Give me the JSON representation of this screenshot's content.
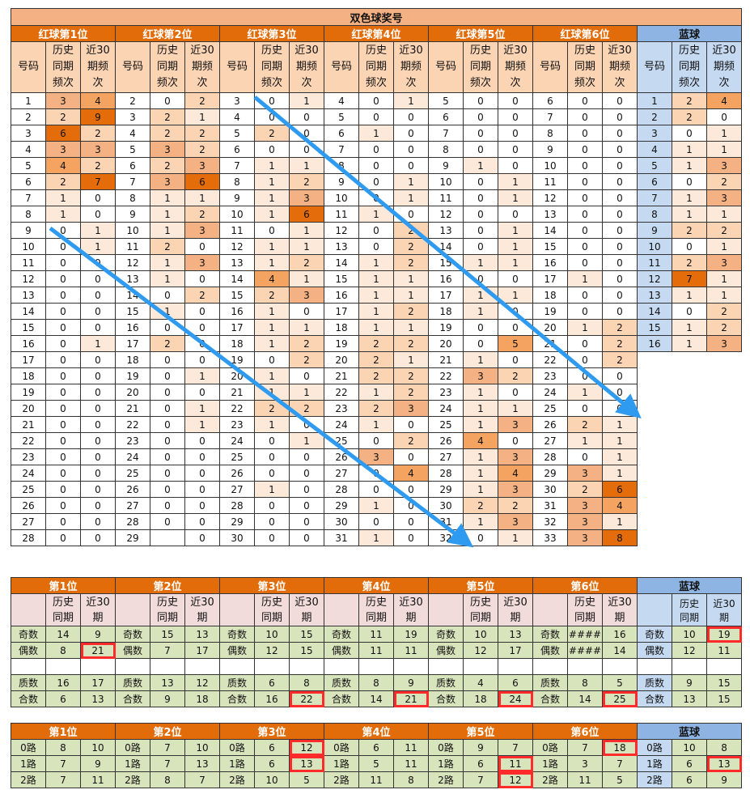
{
  "main_table": {
    "title": "双色球奖号",
    "groups": [
      "红球第1位",
      "红球第2位",
      "红球第3位",
      "红球第4位",
      "红球第5位",
      "红球第6位",
      "蓝球"
    ],
    "sub_headers": [
      "号码",
      "历史同期频次",
      "近30期频次"
    ],
    "red_rows": [
      [
        [
          1,
          3,
          4
        ],
        [
          2,
          0,
          2
        ],
        [
          3,
          0,
          1
        ],
        [
          4,
          0,
          1
        ],
        [
          5,
          0,
          0
        ],
        [
          6,
          0,
          0
        ]
      ],
      [
        [
          2,
          2,
          9
        ],
        [
          3,
          2,
          1
        ],
        [
          4,
          0,
          0
        ],
        [
          5,
          0,
          0
        ],
        [
          6,
          0,
          0
        ],
        [
          7,
          0,
          0
        ]
      ],
      [
        [
          3,
          6,
          2
        ],
        [
          4,
          2,
          2
        ],
        [
          5,
          2,
          0
        ],
        [
          6,
          1,
          0
        ],
        [
          7,
          0,
          0
        ],
        [
          8,
          0,
          0
        ]
      ],
      [
        [
          4,
          3,
          3
        ],
        [
          5,
          3,
          2
        ],
        [
          6,
          0,
          0
        ],
        [
          7,
          0,
          0
        ],
        [
          8,
          0,
          0
        ],
        [
          9,
          0,
          0
        ]
      ],
      [
        [
          5,
          4,
          2
        ],
        [
          6,
          2,
          3
        ],
        [
          7,
          1,
          1
        ],
        [
          8,
          0,
          0
        ],
        [
          9,
          1,
          0
        ],
        [
          10,
          0,
          0
        ]
      ],
      [
        [
          6,
          2,
          7
        ],
        [
          7,
          3,
          6
        ],
        [
          8,
          1,
          2
        ],
        [
          9,
          0,
          1
        ],
        [
          10,
          0,
          1
        ],
        [
          11,
          0,
          0
        ]
      ],
      [
        [
          7,
          1,
          0
        ],
        [
          8,
          1,
          1
        ],
        [
          9,
          1,
          3
        ],
        [
          10,
          0,
          1
        ],
        [
          11,
          0,
          1
        ],
        [
          12,
          0,
          0
        ]
      ],
      [
        [
          8,
          1,
          0
        ],
        [
          9,
          1,
          2
        ],
        [
          10,
          1,
          6
        ],
        [
          11,
          1,
          0
        ],
        [
          12,
          0,
          0
        ],
        [
          13,
          0,
          0
        ]
      ],
      [
        [
          9,
          0,
          1
        ],
        [
          10,
          1,
          3
        ],
        [
          11,
          0,
          1
        ],
        [
          12,
          0,
          2
        ],
        [
          13,
          0,
          1
        ],
        [
          14,
          0,
          0
        ]
      ],
      [
        [
          10,
          0,
          1
        ],
        [
          11,
          2,
          0
        ],
        [
          12,
          1,
          1
        ],
        [
          13,
          0,
          2
        ],
        [
          14,
          0,
          1
        ],
        [
          15,
          0,
          0
        ]
      ],
      [
        [
          11,
          0,
          0
        ],
        [
          12,
          1,
          3
        ],
        [
          13,
          1,
          2
        ],
        [
          14,
          1,
          2
        ],
        [
          15,
          1,
          1
        ],
        [
          16,
          0,
          0
        ]
      ],
      [
        [
          12,
          0,
          0
        ],
        [
          13,
          1,
          0
        ],
        [
          14,
          4,
          1
        ],
        [
          15,
          1,
          1
        ],
        [
          16,
          0,
          0
        ],
        [
          17,
          1,
          0
        ]
      ],
      [
        [
          13,
          0,
          0
        ],
        [
          14,
          0,
          2
        ],
        [
          15,
          2,
          3
        ],
        [
          16,
          1,
          1
        ],
        [
          17,
          1,
          1
        ],
        [
          18,
          0,
          0
        ]
      ],
      [
        [
          14,
          0,
          0
        ],
        [
          15,
          1,
          0
        ],
        [
          16,
          1,
          0
        ],
        [
          17,
          1,
          2
        ],
        [
          18,
          1,
          0
        ],
        [
          19,
          0,
          0
        ]
      ],
      [
        [
          15,
          0,
          0
        ],
        [
          16,
          0,
          0
        ],
        [
          17,
          1,
          1
        ],
        [
          18,
          1,
          1
        ],
        [
          19,
          0,
          0
        ],
        [
          20,
          1,
          2
        ]
      ],
      [
        [
          16,
          0,
          1
        ],
        [
          17,
          2,
          0
        ],
        [
          18,
          1,
          2
        ],
        [
          19,
          2,
          2
        ],
        [
          20,
          0,
          5
        ],
        [
          21,
          0,
          2
        ]
      ],
      [
        [
          17,
          0,
          0
        ],
        [
          18,
          0,
          0
        ],
        [
          19,
          0,
          2
        ],
        [
          20,
          2,
          1
        ],
        [
          21,
          1,
          0
        ],
        [
          22,
          0,
          2
        ]
      ],
      [
        [
          18,
          0,
          0
        ],
        [
          19,
          0,
          1
        ],
        [
          20,
          1,
          0
        ],
        [
          21,
          2,
          2
        ],
        [
          22,
          3,
          2
        ],
        [
          23,
          0,
          0
        ]
      ],
      [
        [
          19,
          0,
          0
        ],
        [
          20,
          0,
          0
        ],
        [
          21,
          1,
          1
        ],
        [
          22,
          1,
          2
        ],
        [
          23,
          1,
          0
        ],
        [
          24,
          1,
          0
        ]
      ],
      [
        [
          20,
          0,
          0
        ],
        [
          21,
          0,
          1
        ],
        [
          22,
          2,
          2
        ],
        [
          23,
          2,
          3
        ],
        [
          24,
          1,
          1
        ],
        [
          25,
          0,
          0
        ]
      ],
      [
        [
          21,
          0,
          0
        ],
        [
          22,
          0,
          1
        ],
        [
          23,
          1,
          0
        ],
        [
          24,
          1,
          0
        ],
        [
          25,
          1,
          3
        ],
        [
          26,
          2,
          1
        ]
      ],
      [
        [
          22,
          0,
          0
        ],
        [
          23,
          0,
          0
        ],
        [
          24,
          0,
          1
        ],
        [
          25,
          0,
          2
        ],
        [
          26,
          4,
          0
        ],
        [
          27,
          1,
          1
        ]
      ],
      [
        [
          23,
          0,
          0
        ],
        [
          24,
          0,
          0
        ],
        [
          25,
          0,
          0
        ],
        [
          26,
          3,
          0
        ],
        [
          27,
          1,
          3
        ],
        [
          28,
          0,
          1
        ]
      ],
      [
        [
          24,
          0,
          0
        ],
        [
          25,
          0,
          0
        ],
        [
          26,
          0,
          0
        ],
        [
          27,
          0,
          4
        ],
        [
          28,
          1,
          4
        ],
        [
          29,
          3,
          1
        ]
      ],
      [
        [
          25,
          0,
          0
        ],
        [
          26,
          0,
          0
        ],
        [
          27,
          1,
          0
        ],
        [
          28,
          0,
          0
        ],
        [
          29,
          1,
          3
        ],
        [
          30,
          2,
          6
        ]
      ],
      [
        [
          26,
          0,
          0
        ],
        [
          27,
          0,
          0
        ],
        [
          28,
          0,
          0
        ],
        [
          29,
          1,
          0
        ],
        [
          30,
          2,
          2
        ],
        [
          31,
          3,
          4
        ]
      ],
      [
        [
          27,
          0,
          0
        ],
        [
          28,
          0,
          0
        ],
        [
          29,
          0,
          0
        ],
        [
          30,
          0,
          0
        ],
        [
          31,
          1,
          3
        ],
        [
          32,
          3,
          1
        ]
      ],
      [
        [
          28,
          0,
          0
        ],
        [
          29,
          "",
          0
        ],
        [
          30,
          0,
          0
        ],
        [
          31,
          1,
          0
        ],
        [
          32,
          0,
          1
        ],
        [
          33,
          3,
          8
        ]
      ]
    ],
    "blue_rows": [
      [
        1,
        2,
        4
      ],
      [
        2,
        2,
        0
      ],
      [
        3,
        0,
        1
      ],
      [
        4,
        1,
        1
      ],
      [
        5,
        1,
        3
      ],
      [
        6,
        0,
        2
      ],
      [
        7,
        1,
        3
      ],
      [
        8,
        1,
        1
      ],
      [
        9,
        2,
        2
      ],
      [
        10,
        0,
        1
      ],
      [
        11,
        2,
        3
      ],
      [
        12,
        7,
        1
      ],
      [
        13,
        1,
        1
      ],
      [
        14,
        0,
        2
      ],
      [
        15,
        1,
        2
      ],
      [
        16,
        1,
        3
      ]
    ]
  },
  "parity_table": {
    "headers": [
      "第1位",
      "第2位",
      "第3位",
      "第4位",
      "第5位",
      "第6位",
      "蓝球"
    ],
    "sub_headers": [
      "历史同期",
      "近30期"
    ],
    "rows": [
      {
        "label": "奇数",
        "cols": [
          [
            14,
            9
          ],
          [
            15,
            13
          ],
          [
            10,
            15
          ],
          [
            11,
            19
          ],
          [
            10,
            13
          ],
          [
            "####",
            16
          ],
          [
            10,
            19
          ]
        ]
      },
      {
        "label": "偶数",
        "cols": [
          [
            8,
            21
          ],
          [
            7,
            17
          ],
          [
            12,
            15
          ],
          [
            11,
            11
          ],
          [
            12,
            17
          ],
          [
            "####",
            14
          ],
          [
            12,
            11
          ]
        ]
      },
      {
        "label": "",
        "cols": [
          [
            "",
            ""
          ],
          [
            "",
            ""
          ],
          [
            "",
            ""
          ],
          [
            "",
            ""
          ],
          [
            "",
            ""
          ],
          [
            "",
            ""
          ],
          [
            "",
            ""
          ]
        ]
      },
      {
        "label": "质数",
        "cols": [
          [
            16,
            17
          ],
          [
            13,
            12
          ],
          [
            6,
            8
          ],
          [
            8,
            9
          ],
          [
            4,
            6
          ],
          [
            8,
            5
          ],
          [
            9,
            15
          ]
        ]
      },
      {
        "label": "合数",
        "cols": [
          [
            6,
            13
          ],
          [
            9,
            18
          ],
          [
            16,
            22
          ],
          [
            14,
            21
          ],
          [
            18,
            24
          ],
          [
            14,
            25
          ],
          [
            13,
            15
          ]
        ]
      }
    ]
  },
  "route_table": {
    "headers": [
      "第1位",
      "第2位",
      "第3位",
      "第4位",
      "第5位",
      "第6位",
      "蓝球"
    ],
    "rows": [
      {
        "label": "0路",
        "cols": [
          [
            8,
            10
          ],
          [
            7,
            10
          ],
          [
            6,
            12
          ],
          [
            6,
            11
          ],
          [
            9,
            7
          ],
          [
            7,
            18
          ],
          [
            10,
            8
          ]
        ]
      },
      {
        "label": "1路",
        "cols": [
          [
            7,
            9
          ],
          [
            7,
            13
          ],
          [
            6,
            13
          ],
          [
            5,
            11
          ],
          [
            6,
            11
          ],
          [
            3,
            7
          ],
          [
            6,
            13
          ]
        ]
      },
      {
        "label": "2路",
        "cols": [
          [
            7,
            11
          ],
          [
            8,
            7
          ],
          [
            10,
            5
          ],
          [
            11,
            8
          ],
          [
            7,
            12
          ],
          [
            11,
            5
          ],
          [
            6,
            9
          ]
        ]
      }
    ]
  },
  "colors": {
    "orange_header": "#e36c0a",
    "blue_header": "#8eb4e3",
    "highlight_box": "#ff2a2a",
    "arrow": "#2e9bf0"
  }
}
